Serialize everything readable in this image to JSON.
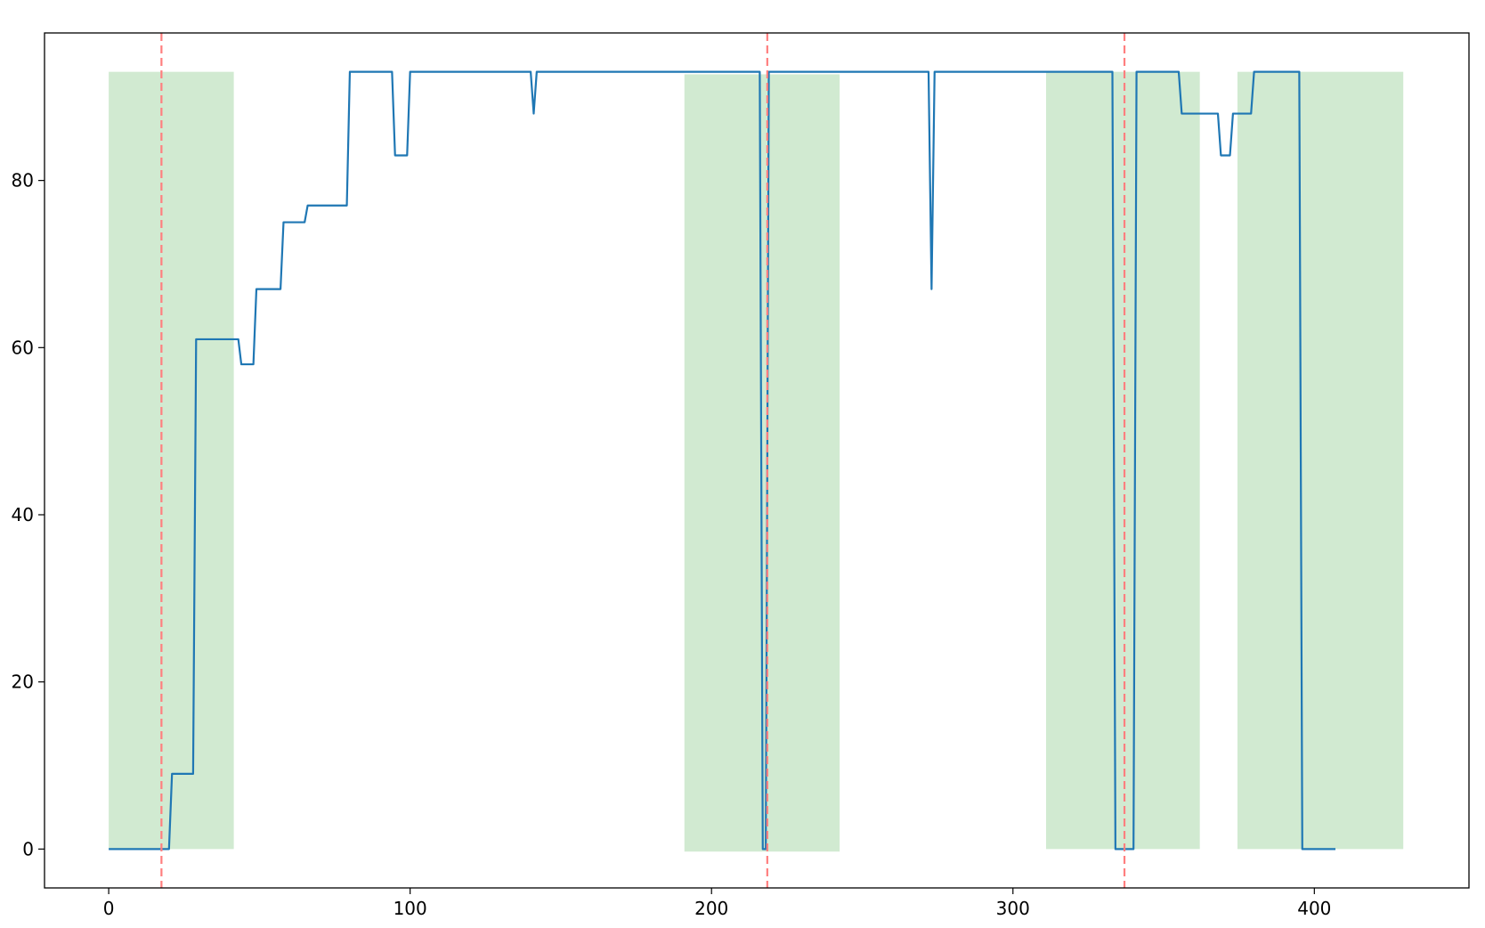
{
  "chart_data": {
    "type": "line",
    "title": "",
    "xlabel": "",
    "ylabel": "",
    "xlim": [
      -21.3,
      451.3
    ],
    "ylim": [
      -4.65,
      97.65
    ],
    "xticks": [
      0,
      100,
      200,
      300,
      400
    ],
    "yticks": [
      0,
      20,
      40,
      60,
      80
    ],
    "grid": false,
    "legend": "none",
    "colors": {
      "line": "#1f77b4",
      "span": "#2ca02c",
      "vline": "#ff7f7f",
      "frame": "#000000"
    },
    "spans": [
      {
        "x0": 0,
        "x1": 41.5,
        "y0": 0,
        "y1": 93
      },
      {
        "x0": 191,
        "x1": 242.5,
        "y0": -0.3,
        "y1": 92.7
      },
      {
        "x0": 311,
        "x1": 362,
        "y0": 0,
        "y1": 93
      },
      {
        "x0": 374.5,
        "x1": 429.5,
        "y0": 0,
        "y1": 93
      }
    ],
    "vlines": [
      17.5,
      218.5,
      337
    ],
    "series": [
      {
        "x": [
          0,
          20,
          21,
          28,
          29,
          43,
          44,
          48,
          49,
          57,
          58,
          65,
          66,
          79,
          80,
          94,
          95,
          99,
          100,
          140,
          141,
          142,
          216,
          217,
          218,
          219,
          272,
          273,
          274,
          333,
          334,
          340,
          341,
          355,
          356,
          368,
          369,
          372,
          373,
          379,
          380,
          395,
          396,
          407
        ],
        "y": [
          0,
          0,
          9,
          9,
          61,
          61,
          58,
          58,
          67,
          67,
          75,
          75,
          77,
          77,
          93,
          93,
          83,
          83,
          93,
          93,
          88,
          93,
          93,
          0,
          0,
          93,
          93,
          67,
          93,
          93,
          0,
          0,
          93,
          93,
          88,
          88,
          83,
          83,
          88,
          88,
          93,
          93,
          0,
          0
        ]
      }
    ]
  }
}
